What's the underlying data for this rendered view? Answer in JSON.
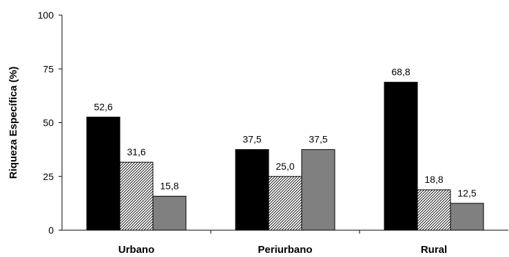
{
  "chart_data": {
    "type": "bar",
    "title": "",
    "xlabel": "",
    "ylabel": "Riqueza Específica (%)",
    "ylim": [
      0,
      100
    ],
    "yticks": [
      "0",
      "25",
      "50",
      "75",
      "100"
    ],
    "grid": false,
    "legend": "none",
    "categories": [
      "Urbano",
      "Periurbano",
      "Rural"
    ],
    "series": [
      {
        "values": [
          52.6,
          37.5,
          68.8
        ],
        "labels": [
          "52,6",
          "37,5",
          "68,8"
        ],
        "fill": "#000000",
        "pattern": "solid"
      },
      {
        "values": [
          31.6,
          25.0,
          18.8
        ],
        "labels": [
          "31,6",
          "25,0",
          "18,8"
        ],
        "fill": "#ffffff",
        "pattern": "hatch"
      },
      {
        "values": [
          15.8,
          37.5,
          12.5
        ],
        "labels": [
          "15,8",
          "37,5",
          "12,5"
        ],
        "fill": "#808080",
        "pattern": "solid"
      }
    ]
  }
}
